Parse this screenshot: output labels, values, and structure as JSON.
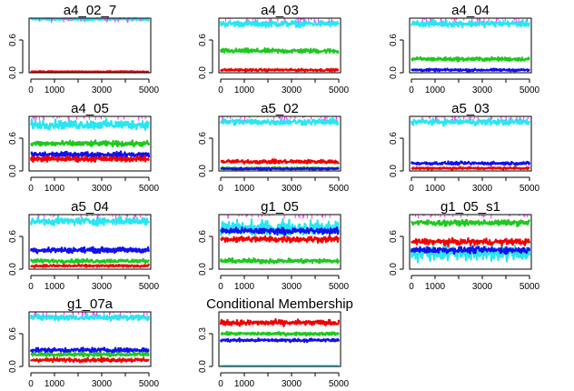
{
  "colors": {
    "cyan": "#29e6f2",
    "red": "#f20000",
    "green": "#1ec81e",
    "blue": "#1010f0",
    "magenta": "#ff40ff",
    "axis": "#000000"
  },
  "chart_data": [
    {
      "type": "line",
      "title": "a4_02_7",
      "xticks": [
        "0",
        "1000",
        "3000",
        "5000"
      ],
      "yticks": [
        "0.0",
        "0.6"
      ],
      "xlim": [
        0,
        5000
      ],
      "ylim": [
        0,
        1
      ],
      "series": [
        {
          "color": "cyan",
          "mean": 0.98,
          "spread": 0.03
        },
        {
          "color": "red",
          "mean": 0.02,
          "spread": 0.015
        }
      ]
    },
    {
      "type": "line",
      "title": "a4_03",
      "xticks": [
        "0",
        "1000",
        "3000",
        "5000"
      ],
      "yticks": [
        "0.0",
        "0.6"
      ],
      "xlim": [
        0,
        5000
      ],
      "ylim": [
        0,
        1
      ],
      "series": [
        {
          "color": "cyan",
          "mean": 0.9,
          "spread": 0.08
        },
        {
          "color": "green",
          "mean": 0.4,
          "spread": 0.06
        },
        {
          "color": "red",
          "mean": 0.05,
          "spread": 0.03
        }
      ]
    },
    {
      "type": "line",
      "title": "a4_04",
      "xticks": [
        "0",
        "1000",
        "3000",
        "5000"
      ],
      "yticks": [
        "0.0",
        "0.6"
      ],
      "xlim": [
        0,
        5000
      ],
      "ylim": [
        0,
        1
      ],
      "series": [
        {
          "color": "cyan",
          "mean": 0.9,
          "spread": 0.08
        },
        {
          "color": "green",
          "mean": 0.25,
          "spread": 0.05
        },
        {
          "color": "blue",
          "mean": 0.05,
          "spread": 0.03
        }
      ]
    },
    {
      "type": "line",
      "title": "a4_05",
      "xticks": [
        "0",
        "1000",
        "3000",
        "5000"
      ],
      "yticks": [
        "0.0",
        "0.6"
      ],
      "xlim": [
        0,
        5000
      ],
      "ylim": [
        0,
        1
      ],
      "series": [
        {
          "color": "cyan",
          "mean": 0.85,
          "spread": 0.12
        },
        {
          "color": "green",
          "mean": 0.5,
          "spread": 0.07
        },
        {
          "color": "blue",
          "mean": 0.3,
          "spread": 0.07
        },
        {
          "color": "red",
          "mean": 0.22,
          "spread": 0.07
        }
      ]
    },
    {
      "type": "line",
      "title": "a5_02",
      "xticks": [
        "0",
        "1000",
        "3000",
        "5000"
      ],
      "yticks": [
        "0.0",
        "0.6"
      ],
      "xlim": [
        0,
        5000
      ],
      "ylim": [
        0,
        1
      ],
      "series": [
        {
          "color": "cyan",
          "mean": 0.9,
          "spread": 0.08
        },
        {
          "color": "red",
          "mean": 0.17,
          "spread": 0.05
        },
        {
          "color": "green",
          "mean": 0.05,
          "spread": 0.03
        },
        {
          "color": "blue",
          "mean": 0.04,
          "spread": 0.02
        }
      ]
    },
    {
      "type": "line",
      "title": "a5_03",
      "xticks": [
        "0",
        "1000",
        "3000",
        "5000"
      ],
      "yticks": [
        "0.0",
        "0.6"
      ],
      "xlim": [
        0,
        5000
      ],
      "ylim": [
        0,
        1
      ],
      "series": [
        {
          "color": "cyan",
          "mean": 0.9,
          "spread": 0.08
        },
        {
          "color": "blue",
          "mean": 0.14,
          "spread": 0.04
        },
        {
          "color": "red",
          "mean": 0.05,
          "spread": 0.03
        }
      ]
    },
    {
      "type": "line",
      "title": "a5_04",
      "xticks": [
        "0",
        "1000",
        "3000",
        "5000"
      ],
      "yticks": [
        "0.0",
        "0.6"
      ],
      "xlim": [
        0,
        5000
      ],
      "ylim": [
        0,
        1
      ],
      "series": [
        {
          "color": "cyan",
          "mean": 0.88,
          "spread": 0.1
        },
        {
          "color": "blue",
          "mean": 0.35,
          "spread": 0.07
        },
        {
          "color": "green",
          "mean": 0.15,
          "spread": 0.05
        },
        {
          "color": "red",
          "mean": 0.06,
          "spread": 0.03
        }
      ]
    },
    {
      "type": "line",
      "title": "g1_05",
      "xticks": [
        "0",
        "1000",
        "3000",
        "5000"
      ],
      "yticks": [
        "0.0",
        "0.6"
      ],
      "xlim": [
        0,
        5000
      ],
      "ylim": [
        0,
        1
      ],
      "series": [
        {
          "color": "cyan",
          "mean": 0.75,
          "spread": 0.2
        },
        {
          "color": "blue",
          "mean": 0.7,
          "spread": 0.08
        },
        {
          "color": "red",
          "mean": 0.55,
          "spread": 0.08
        },
        {
          "color": "green",
          "mean": 0.15,
          "spread": 0.06
        }
      ]
    },
    {
      "type": "line",
      "title": "g1_05_s1",
      "xticks": [
        "0",
        "1000",
        "3000",
        "5000"
      ],
      "yticks": [
        "0.0",
        "0.6"
      ],
      "xlim": [
        0,
        5000
      ],
      "ylim": [
        0,
        1
      ],
      "series": [
        {
          "color": "cyan",
          "mean": 0.3,
          "spread": 0.2
        },
        {
          "color": "green",
          "mean": 0.85,
          "spread": 0.07
        },
        {
          "color": "red",
          "mean": 0.5,
          "spread": 0.08
        },
        {
          "color": "blue",
          "mean": 0.35,
          "spread": 0.08
        }
      ]
    },
    {
      "type": "line",
      "title": "g1_07a",
      "xticks": [
        "0",
        "1000",
        "3000",
        "5000"
      ],
      "yticks": [
        "0.0",
        "0.6"
      ],
      "xlim": [
        0,
        5000
      ],
      "ylim": [
        0,
        1
      ],
      "series": [
        {
          "color": "cyan",
          "mean": 0.9,
          "spread": 0.08
        },
        {
          "color": "blue",
          "mean": 0.3,
          "spread": 0.06
        },
        {
          "color": "green",
          "mean": 0.22,
          "spread": 0.05
        },
        {
          "color": "red",
          "mean": 0.12,
          "spread": 0.05
        }
      ]
    },
    {
      "type": "line",
      "title": "Conditional Membership",
      "xticks": [
        "0",
        "1000",
        "3000",
        "5000"
      ],
      "yticks": [
        "0.0",
        "0.3"
      ],
      "xlim": [
        0,
        5000
      ],
      "ylim": [
        0,
        0.5
      ],
      "series": [
        {
          "color": "red",
          "mean": 0.4,
          "spread": 0.035
        },
        {
          "color": "green",
          "mean": 0.3,
          "spread": 0.02
        },
        {
          "color": "blue",
          "mean": 0.24,
          "spread": 0.02
        },
        {
          "color": "cyan",
          "mean": 0.005,
          "spread": 0.002
        }
      ]
    }
  ]
}
